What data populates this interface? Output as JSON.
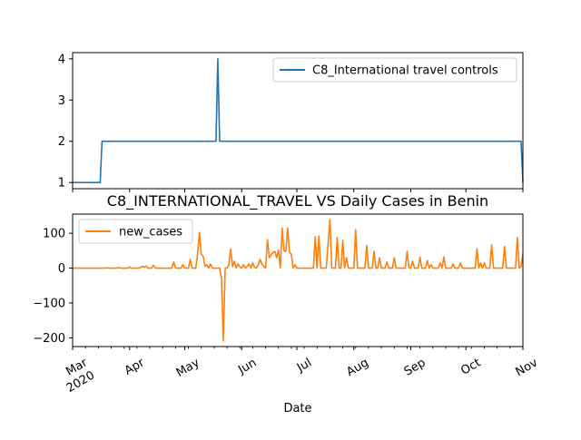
{
  "chart_data": [
    {
      "type": "line",
      "title": "",
      "xlabel": "",
      "ylabel": "",
      "ylim": [
        0.85,
        4.15
      ],
      "yticks": [
        1,
        2,
        3,
        4
      ],
      "grid": false,
      "legend_position": "top-right",
      "series": [
        {
          "name": "C8_International travel controls",
          "color": "#1f77b4",
          "points": [
            [
              "2020-03-01",
              1
            ],
            [
              "2020-03-16",
              1
            ],
            [
              "2020-03-17",
              2
            ],
            [
              "2020-05-18",
              2
            ],
            [
              "2020-05-19",
              4
            ],
            [
              "2020-05-20",
              2
            ],
            [
              "2020-10-31",
              2
            ],
            [
              "2020-11-01",
              1
            ]
          ]
        }
      ]
    },
    {
      "type": "line",
      "title": "C8_INTERNATIONAL_TRAVEL VS Daily Cases in Benin",
      "xlabel": "Date",
      "ylabel": "",
      "ylim": [
        -225,
        155
      ],
      "yticks": [
        -200,
        -100,
        0,
        100
      ],
      "ytick_labels": [
        "−200",
        "−100",
        "0",
        "100"
      ],
      "xlim": [
        "2020-03-01",
        "2020-11-01"
      ],
      "xticks": [
        {
          "date": "2020-03-01",
          "label": "Mar",
          "sub": "2020"
        },
        {
          "date": "2020-04-01",
          "label": "Apr",
          "sub": ""
        },
        {
          "date": "2020-05-01",
          "label": "May",
          "sub": ""
        },
        {
          "date": "2020-06-01",
          "label": "Jun",
          "sub": ""
        },
        {
          "date": "2020-07-01",
          "label": "Jul",
          "sub": ""
        },
        {
          "date": "2020-08-01",
          "label": "Aug",
          "sub": ""
        },
        {
          "date": "2020-09-01",
          "label": "Sep",
          "sub": ""
        },
        {
          "date": "2020-10-01",
          "label": "Oct",
          "sub": ""
        },
        {
          "date": "2020-11-01",
          "label": "Nov",
          "sub": ""
        }
      ],
      "grid": false,
      "legend_position": "top-left",
      "series": [
        {
          "name": "new_cases",
          "color": "#ff7f0e",
          "points": [
            [
              "2020-03-01",
              0
            ],
            [
              "2020-03-19",
              0
            ],
            [
              "2020-03-20",
              1
            ],
            [
              "2020-03-21",
              0
            ],
            [
              "2020-03-25",
              0
            ],
            [
              "2020-03-26",
              2
            ],
            [
              "2020-03-27",
              0
            ],
            [
              "2020-03-31",
              0
            ],
            [
              "2020-04-01",
              3
            ],
            [
              "2020-04-02",
              0
            ],
            [
              "2020-04-06",
              0
            ],
            [
              "2020-04-07",
              2
            ],
            [
              "2020-04-08",
              5
            ],
            [
              "2020-04-09",
              2
            ],
            [
              "2020-04-10",
              6
            ],
            [
              "2020-04-11",
              0
            ],
            [
              "2020-04-13",
              0
            ],
            [
              "2020-04-14",
              8
            ],
            [
              "2020-04-15",
              0
            ],
            [
              "2020-04-24",
              0
            ],
            [
              "2020-04-25",
              18
            ],
            [
              "2020-04-26",
              0
            ],
            [
              "2020-04-29",
              0
            ],
            [
              "2020-04-30",
              10
            ],
            [
              "2020-05-01",
              0
            ],
            [
              "2020-05-03",
              0
            ],
            [
              "2020-05-04",
              25
            ],
            [
              "2020-05-05",
              0
            ],
            [
              "2020-05-07",
              0
            ],
            [
              "2020-05-08",
              40
            ],
            [
              "2020-05-09",
              102
            ],
            [
              "2020-05-10",
              40
            ],
            [
              "2020-05-11",
              35
            ],
            [
              "2020-05-12",
              5
            ],
            [
              "2020-05-13",
              10
            ],
            [
              "2020-05-14",
              0
            ],
            [
              "2020-05-15",
              12
            ],
            [
              "2020-05-16",
              0
            ],
            [
              "2020-05-20",
              0
            ],
            [
              "2020-05-21",
              -30
            ],
            [
              "2020-05-22",
              -209
            ],
            [
              "2020-05-23",
              0
            ],
            [
              "2020-05-24",
              0
            ],
            [
              "2020-05-25",
              10
            ],
            [
              "2020-05-26",
              55
            ],
            [
              "2020-05-27",
              5
            ],
            [
              "2020-05-28",
              20
            ],
            [
              "2020-05-29",
              0
            ],
            [
              "2020-05-30",
              12
            ],
            [
              "2020-05-31",
              3
            ],
            [
              "2020-06-01",
              0
            ],
            [
              "2020-06-02",
              10
            ],
            [
              "2020-06-03",
              0
            ],
            [
              "2020-06-04",
              5
            ],
            [
              "2020-06-05",
              12
            ],
            [
              "2020-06-06",
              0
            ],
            [
              "2020-06-07",
              15
            ],
            [
              "2020-06-08",
              2
            ],
            [
              "2020-06-09",
              0
            ],
            [
              "2020-06-10",
              10
            ],
            [
              "2020-06-11",
              25
            ],
            [
              "2020-06-12",
              12
            ],
            [
              "2020-06-13",
              5
            ],
            [
              "2020-06-14",
              0
            ],
            [
              "2020-06-15",
              82
            ],
            [
              "2020-06-16",
              30
            ],
            [
              "2020-06-17",
              38
            ],
            [
              "2020-06-18",
              45
            ],
            [
              "2020-06-19",
              48
            ],
            [
              "2020-06-20",
              30
            ],
            [
              "2020-06-21",
              52
            ],
            [
              "2020-06-22",
              0
            ],
            [
              "2020-06-23",
              115
            ],
            [
              "2020-06-24",
              50
            ],
            [
              "2020-06-25",
              48
            ],
            [
              "2020-06-26",
              115
            ],
            [
              "2020-06-27",
              45
            ],
            [
              "2020-06-28",
              40
            ],
            [
              "2020-06-29",
              0
            ],
            [
              "2020-06-30",
              10
            ],
            [
              "2020-07-01",
              0
            ],
            [
              "2020-07-10",
              0
            ],
            [
              "2020-07-11",
              90
            ],
            [
              "2020-07-12",
              0
            ],
            [
              "2020-07-13",
              92
            ],
            [
              "2020-07-14",
              0
            ],
            [
              "2020-07-17",
              0
            ],
            [
              "2020-07-18",
              70
            ],
            [
              "2020-07-19",
              140
            ],
            [
              "2020-07-20",
              0
            ],
            [
              "2020-07-22",
              0
            ],
            [
              "2020-07-23",
              88
            ],
            [
              "2020-07-24",
              0
            ],
            [
              "2020-07-25",
              0
            ],
            [
              "2020-07-26",
              80
            ],
            [
              "2020-07-27",
              0
            ],
            [
              "2020-07-28",
              30
            ],
            [
              "2020-07-29",
              0
            ],
            [
              "2020-08-01",
              0
            ],
            [
              "2020-08-02",
              110
            ],
            [
              "2020-08-03",
              0
            ],
            [
              "2020-08-07",
              0
            ],
            [
              "2020-08-08",
              65
            ],
            [
              "2020-08-09",
              0
            ],
            [
              "2020-08-11",
              0
            ],
            [
              "2020-08-12",
              48
            ],
            [
              "2020-08-13",
              0
            ],
            [
              "2020-08-14",
              0
            ],
            [
              "2020-08-15",
              30
            ],
            [
              "2020-08-16",
              0
            ],
            [
              "2020-08-18",
              0
            ],
            [
              "2020-08-19",
              18
            ],
            [
              "2020-08-20",
              0
            ],
            [
              "2020-08-22",
              0
            ],
            [
              "2020-08-23",
              30
            ],
            [
              "2020-08-24",
              0
            ],
            [
              "2020-08-29",
              0
            ],
            [
              "2020-08-30",
              48
            ],
            [
              "2020-08-31",
              0
            ],
            [
              "2020-09-01",
              0
            ],
            [
              "2020-09-02",
              20
            ],
            [
              "2020-09-03",
              0
            ],
            [
              "2020-09-05",
              0
            ],
            [
              "2020-09-06",
              32
            ],
            [
              "2020-09-07",
              0
            ],
            [
              "2020-09-09",
              0
            ],
            [
              "2020-09-10",
              22
            ],
            [
              "2020-09-11",
              0
            ],
            [
              "2020-09-12",
              10
            ],
            [
              "2020-09-13",
              0
            ],
            [
              "2020-09-16",
              0
            ],
            [
              "2020-09-17",
              15
            ],
            [
              "2020-09-18",
              0
            ],
            [
              "2020-09-19",
              32
            ],
            [
              "2020-09-20",
              0
            ],
            [
              "2020-09-23",
              0
            ],
            [
              "2020-09-24",
              12
            ],
            [
              "2020-09-25",
              0
            ],
            [
              "2020-09-27",
              0
            ],
            [
              "2020-09-28",
              15
            ],
            [
              "2020-09-29",
              0
            ],
            [
              "2020-10-06",
              0
            ],
            [
              "2020-10-07",
              55
            ],
            [
              "2020-10-08",
              0
            ],
            [
              "2020-10-09",
              15
            ],
            [
              "2020-10-10",
              0
            ],
            [
              "2020-10-11",
              15
            ],
            [
              "2020-10-12",
              0
            ],
            [
              "2020-10-14",
              0
            ],
            [
              "2020-10-15",
              67
            ],
            [
              "2020-10-16",
              0
            ],
            [
              "2020-10-21",
              0
            ],
            [
              "2020-10-22",
              62
            ],
            [
              "2020-10-23",
              0
            ],
            [
              "2020-10-28",
              0
            ],
            [
              "2020-10-29",
              88
            ],
            [
              "2020-10-30",
              0
            ],
            [
              "2020-10-31",
              5
            ],
            [
              "2020-11-01",
              40
            ]
          ]
        }
      ]
    }
  ]
}
